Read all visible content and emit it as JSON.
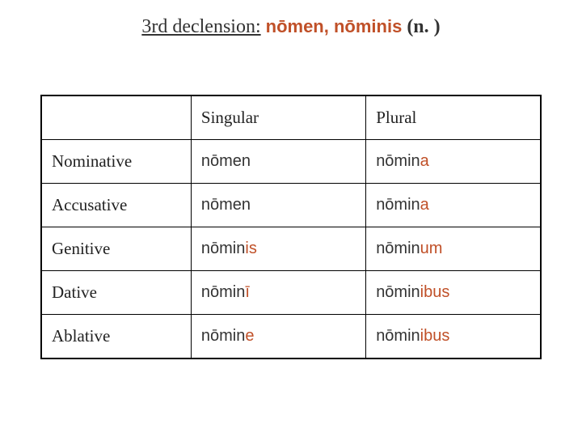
{
  "title": {
    "prefix": "3rd declension:",
    "word": "nōmen, nōminis",
    "gender": "(n. )"
  },
  "headers": {
    "singular": "Singular",
    "plural": "Plural"
  },
  "rows": [
    {
      "case": "Nominative",
      "sg_stem": "nōmen",
      "sg_end": "",
      "pl_stem": "nōmin",
      "pl_end": "a"
    },
    {
      "case": "Accusative",
      "sg_stem": "nōmen",
      "sg_end": "",
      "pl_stem": "nōmin",
      "pl_end": "a"
    },
    {
      "case": "Genitive",
      "sg_stem": "nōmin",
      "sg_end": "is",
      "pl_stem": "nōmin",
      "pl_end": "um"
    },
    {
      "case": "Dative",
      "sg_stem": "nōmin",
      "sg_end": "ī",
      "pl_stem": "nōmin",
      "pl_end": "ibus"
    },
    {
      "case": "Ablative",
      "sg_stem": "nōmin",
      "sg_end": "e",
      "pl_stem": "nōmin",
      "pl_end": "ibus"
    }
  ],
  "colors": {
    "ending": "#c05028",
    "stem": "#333333",
    "border": "#000000",
    "background": "#ffffff"
  },
  "typography": {
    "title_fontsize": 24,
    "header_fontsize": 21,
    "cell_fontsize": 20,
    "title_font": "Georgia",
    "form_font": "Verdana"
  }
}
